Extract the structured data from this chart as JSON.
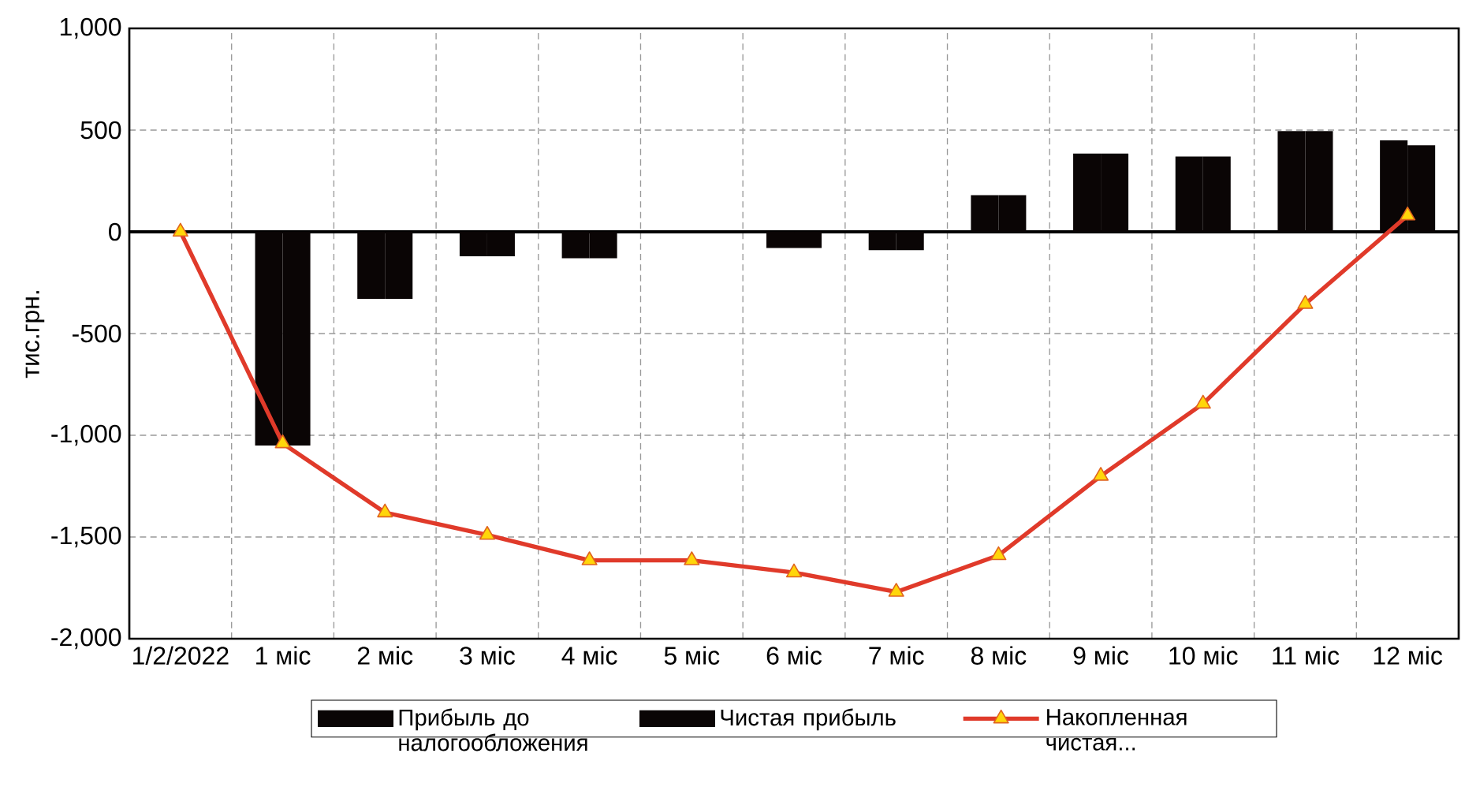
{
  "chart_data": {
    "type": "bar",
    "ylabel": "тис.грн.",
    "categories": [
      "1/2/2022",
      "1 міс",
      "2 міс",
      "3 міс",
      "4 міс",
      "5 міс",
      "6 міс",
      "7 міс",
      "8 міс",
      "9 міс",
      "10 міс",
      "11 міс",
      "12 міс"
    ],
    "series": [
      {
        "name": "Прибыль до налогообложения",
        "color": "#0a0505",
        "values": [
          0,
          -1050,
          -330,
          -120,
          -130,
          0,
          -80,
          -90,
          180,
          385,
          370,
          495,
          450
        ]
      },
      {
        "name": "Чистая прибыль",
        "color": "#0a0505",
        "values": [
          0,
          -1050,
          -330,
          -120,
          -130,
          0,
          -80,
          -90,
          180,
          385,
          370,
          495,
          425
        ]
      },
      {
        "name": "Накопленная чистая...",
        "type": "line",
        "color": "#e03a2a",
        "marker": "triangle",
        "values": [
          0,
          -1040,
          -1380,
          -1490,
          -1615,
          -1615,
          -1675,
          -1770,
          -1590,
          -1200,
          -845,
          -355,
          80
        ]
      }
    ],
    "ylim": [
      -2000,
      1000
    ],
    "yticks": [
      {
        "value": -2000,
        "label": "-2,000"
      },
      {
        "value": -1500,
        "label": "-1,500"
      },
      {
        "value": -1000,
        "label": "-1,000"
      },
      {
        "value": -500,
        "label": "-500"
      },
      {
        "value": 0,
        "label": "0"
      },
      {
        "value": 500,
        "label": "500"
      },
      {
        "value": 1000,
        "label": "1,000"
      }
    ],
    "grid": true,
    "legend": "bottom"
  }
}
